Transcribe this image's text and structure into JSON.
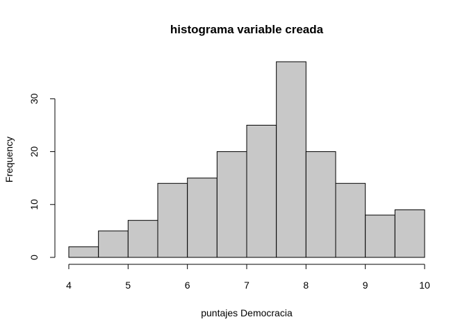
{
  "chart_data": {
    "type": "bar",
    "title": "histograma variable creada",
    "xlabel": "puntajes Democracia",
    "ylabel": "Frequency",
    "bins": [
      {
        "start": 4.0,
        "end": 4.5,
        "value": 2
      },
      {
        "start": 4.5,
        "end": 5.0,
        "value": 5
      },
      {
        "start": 5.0,
        "end": 5.5,
        "value": 7
      },
      {
        "start": 5.5,
        "end": 6.0,
        "value": 14
      },
      {
        "start": 6.0,
        "end": 6.5,
        "value": 15
      },
      {
        "start": 6.5,
        "end": 7.0,
        "value": 20
      },
      {
        "start": 7.0,
        "end": 7.5,
        "value": 25
      },
      {
        "start": 7.5,
        "end": 8.0,
        "value": 37
      },
      {
        "start": 8.0,
        "end": 8.5,
        "value": 20
      },
      {
        "start": 8.5,
        "end": 9.0,
        "value": 14
      },
      {
        "start": 9.0,
        "end": 9.5,
        "value": 8
      },
      {
        "start": 9.5,
        "end": 10.0,
        "value": 9
      }
    ],
    "xlim": [
      4,
      10
    ],
    "ylim": [
      0,
      37
    ],
    "xticks": [
      "4",
      "5",
      "6",
      "7",
      "8",
      "9",
      "10"
    ],
    "yticks": [
      "0",
      "10",
      "20",
      "30"
    ],
    "grid": false,
    "bar_color": "#c8c8c8",
    "border_color": "#000000"
  }
}
